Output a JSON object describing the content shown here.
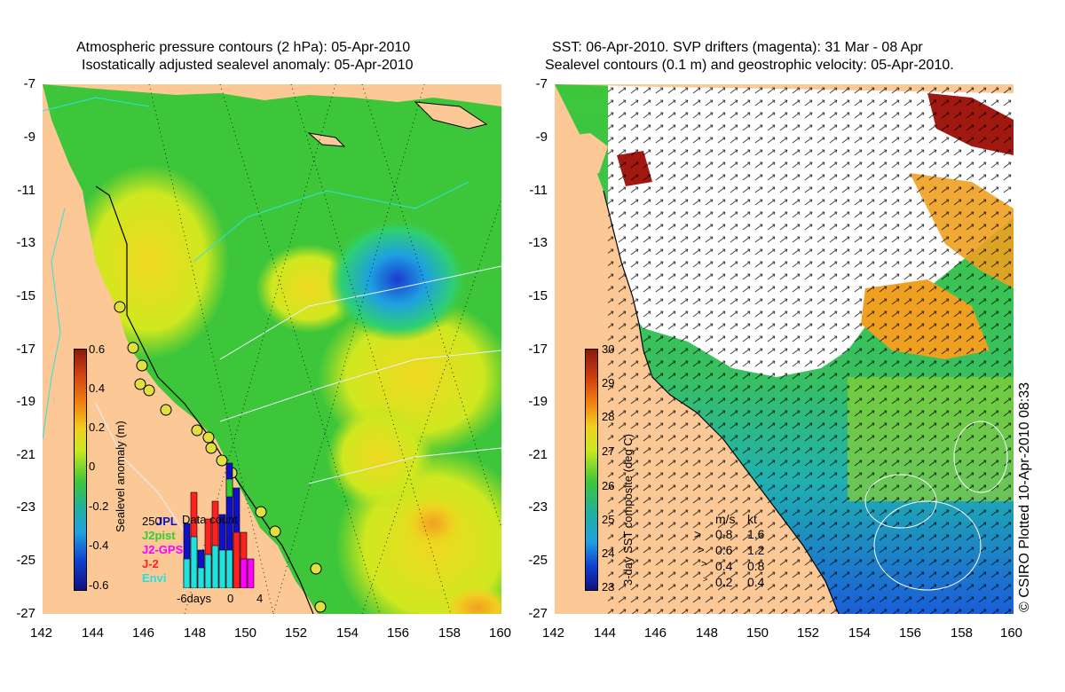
{
  "left_panel": {
    "title_line1": "Atmospheric pressure contours (2 hPa): 05-Apr-2010",
    "title_line2": "Isostatically adjusted sealevel anomaly: 05-Apr-2010",
    "colorbar": {
      "label": "Sealevel anomaly (m)",
      "ticks": [
        "0.6",
        "0.4",
        "0.2",
        "0",
        "-0.2",
        "-0.4",
        "-0.6"
      ],
      "range": [
        -0.6,
        0.6
      ]
    },
    "count_legend": {
      "title": "Data count",
      "top_label": "250",
      "series": [
        {
          "name": "JPL",
          "color": "#1010c8"
        },
        {
          "name": "J2pist",
          "color": "#30d030"
        },
        {
          "name": "J2-GPS",
          "color": "#ff00ff"
        },
        {
          "name": "J-2",
          "color": "#ff2020"
        },
        {
          "name": "Envi",
          "color": "#20e0e0"
        }
      ],
      "x_ticks": [
        "-6days",
        "0",
        "4"
      ]
    }
  },
  "right_panel": {
    "title_line1": "SST: 06-Apr-2010. SVP drifters (magenta): 31 Mar - 08 Apr",
    "title_line2": "Sealevel contours (0.1 m) and geostrophic velocity: 05-Apr-2010.",
    "colorbar": {
      "label": "3-day SST composite (deg C)",
      "ticks": [
        "30",
        "29",
        "28",
        "27",
        "26",
        "25",
        "24",
        "23"
      ],
      "range": [
        23,
        30
      ]
    },
    "velocity_legend": {
      "header_ms": "m/s",
      "header_kt": "kt",
      "rows": [
        {
          "ms": "0.8",
          "kt": "1.6"
        },
        {
          "ms": "0.6",
          "kt": "1.2"
        },
        {
          "ms": "0.4",
          "kt": "0.8"
        },
        {
          "ms": "0.2",
          "kt": "0.4"
        }
      ]
    },
    "stamp": "© CSIRO Plotted 10-Apr-2010 08:33"
  },
  "axes": {
    "x_ticks": [
      "142",
      "144",
      "146",
      "148",
      "150",
      "152",
      "154",
      "156",
      "158",
      "160"
    ],
    "y_ticks": [
      "-7",
      "-9",
      "-11",
      "-13",
      "-15",
      "-17",
      "-19",
      "-21",
      "-23",
      "-25",
      "-27"
    ],
    "x_range": [
      142,
      160
    ],
    "y_range": [
      -27,
      -7
    ]
  },
  "colors": {
    "land": "#fbc896",
    "sea_green": "#3ec63a",
    "sea_yellow": "#d6e81e",
    "low_blue": "#1a5ed8",
    "cloud_white": "#ffffff"
  }
}
